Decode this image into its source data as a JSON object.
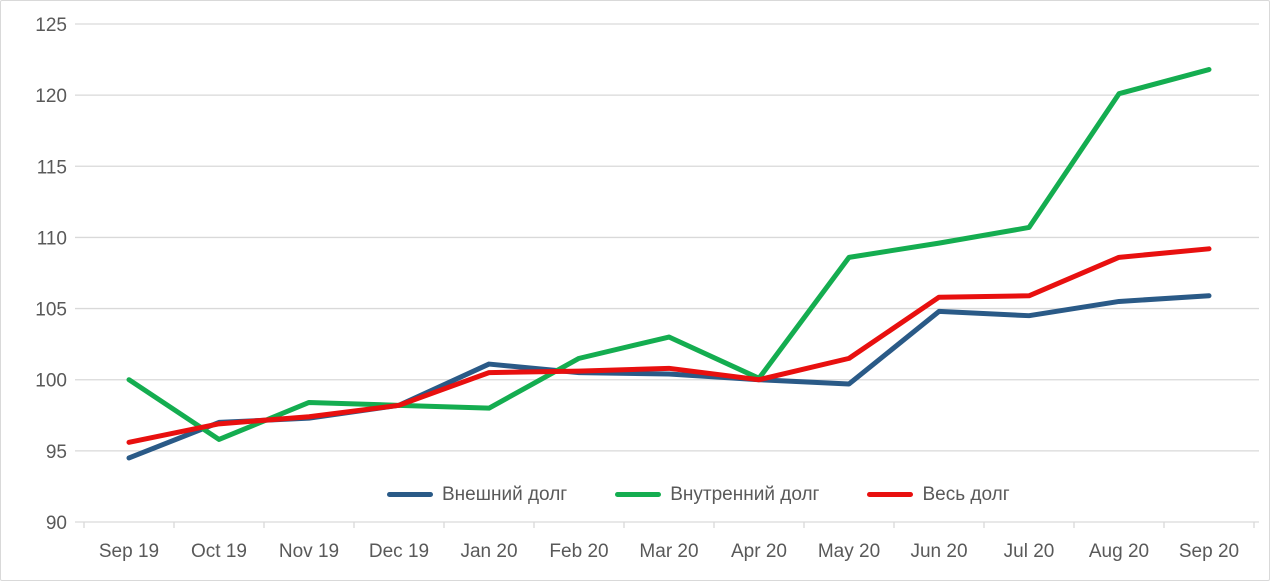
{
  "chart_data": {
    "type": "line",
    "title": "",
    "xlabel": "",
    "ylabel": "",
    "categories": [
      "Sep 19",
      "Oct 19",
      "Nov 19",
      "Dec 19",
      "Jan 20",
      "Feb 20",
      "Mar 20",
      "Apr 20",
      "May 20",
      "Jun 20",
      "Jul 20",
      "Aug 20",
      "Sep 20"
    ],
    "series": [
      {
        "id": "external-debt",
        "name": "Внешний долг",
        "color": "#2a5a87",
        "values": [
          94.5,
          97.0,
          97.3,
          98.2,
          101.1,
          100.5,
          100.4,
          100.0,
          99.7,
          104.8,
          104.5,
          105.5,
          105.9
        ]
      },
      {
        "id": "domestic-debt",
        "name": "Внутренний долг",
        "color": "#14ad50",
        "values": [
          100.0,
          95.8,
          98.4,
          98.2,
          98.0,
          101.5,
          103.0,
          100.1,
          108.6,
          109.6,
          110.7,
          120.1,
          121.8
        ]
      },
      {
        "id": "total-debt",
        "name": "Весь долг",
        "color": "#e8100f",
        "values": [
          95.6,
          96.9,
          97.4,
          98.2,
          100.5,
          100.6,
          100.8,
          100.0,
          101.5,
          105.8,
          105.9,
          108.6,
          109.2
        ]
      }
    ],
    "ylim": [
      90,
      125
    ],
    "yticks": [
      90,
      95,
      100,
      105,
      110,
      115,
      120,
      125
    ],
    "grid": true,
    "legend_position": "bottom-center"
  },
  "colors": {
    "grid": "#d9d9d9",
    "axis_text": "#595959",
    "frame_border": "#d9d9d9",
    "background": "#ffffff"
  }
}
